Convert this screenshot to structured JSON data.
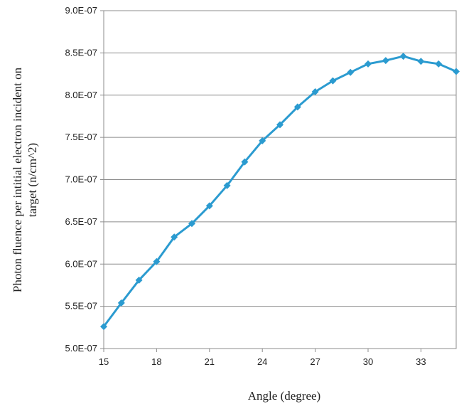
{
  "chart_data": {
    "type": "line",
    "xlabel": "Angle (degree)",
    "ylabel_lines": [
      "Photon fluence per intitial electron incident on",
      "target (n/cm^2)"
    ],
    "xlim": [
      15,
      35
    ],
    "ylim": [
      5e-07,
      9e-07
    ],
    "xticks": [
      15,
      18,
      21,
      24,
      27,
      30,
      33
    ],
    "xtick_labels": [
      "15",
      "18",
      "21",
      "24",
      "27",
      "30",
      "33"
    ],
    "yticks": [
      5e-07,
      5.5e-07,
      6e-07,
      6.5e-07,
      7e-07,
      7.5e-07,
      8e-07,
      8.5e-07,
      9e-07
    ],
    "ytick_labels": [
      "5.0E-07",
      "5.5E-07",
      "6.0E-07",
      "6.5E-07",
      "7.0E-07",
      "7.5E-07",
      "8.0E-07",
      "8.5E-07",
      "9.0E-07"
    ],
    "grid": "horizontal",
    "legend": "none",
    "series": [
      {
        "color": "#2b9bd0",
        "marker": "diamond",
        "x": [
          15,
          16,
          17,
          18,
          19,
          20,
          21,
          22,
          23,
          24,
          25,
          26,
          27,
          28,
          29,
          30,
          31,
          32,
          33,
          34,
          35
        ],
        "values": [
          5.26e-07,
          5.54e-07,
          5.81e-07,
          6.03e-07,
          6.32e-07,
          6.48e-07,
          6.69e-07,
          6.93e-07,
          7.21e-07,
          7.46e-07,
          7.65e-07,
          7.86e-07,
          8.04e-07,
          8.17e-07,
          8.27e-07,
          8.37e-07,
          8.41e-07,
          8.46e-07,
          8.4e-07,
          8.37e-07,
          8.28e-07
        ]
      }
    ]
  }
}
